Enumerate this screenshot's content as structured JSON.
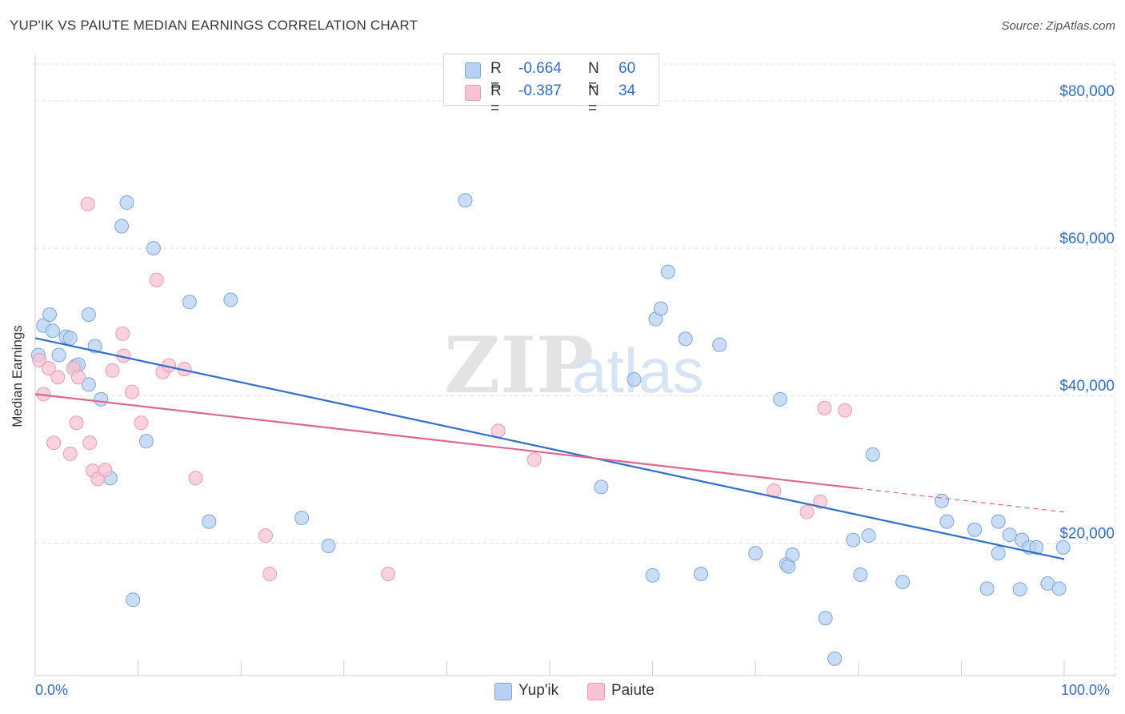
{
  "title": "YUP'IK VS PAIUTE MEDIAN EARNINGS CORRELATION CHART",
  "source": "Source: ZipAtlas.com",
  "watermark": {
    "zip": "ZIP",
    "atlas": "atlas"
  },
  "legend": {
    "rows": [
      {
        "r_label": "R =",
        "r_value": "-0.664",
        "n_label": "N =",
        "n_value": "60"
      },
      {
        "r_label": "R =",
        "r_value": "-0.387",
        "n_label": "N =",
        "n_value": "34"
      }
    ]
  },
  "bottom_legend": {
    "series1": "Yup'ik",
    "series2": "Paiute"
  },
  "x_ticks": {
    "left": "0.0%",
    "right": "100.0%"
  },
  "colors": {
    "blue_fill": "#b8d1f3",
    "blue_stroke": "#7aa6e0",
    "blue_line": "#2f6fd0",
    "pink_fill": "#f7c3d3",
    "pink_stroke": "#ec9bb5",
    "pink_line": "#e06690",
    "grid": "#dddddd",
    "tick_text": "#2f6fd0"
  },
  "chart_data": {
    "type": "scatter",
    "title": "YUP'IK VS PAIUTE MEDIAN EARNINGS CORRELATION CHART",
    "xlabel": "",
    "ylabel": "Median Earnings",
    "xlim": [
      0,
      100
    ],
    "ylim": [
      2000,
      85000
    ],
    "y_ticks": [
      {
        "value": 20000,
        "label": "$20,000"
      },
      {
        "value": 40000,
        "label": "$40,000"
      },
      {
        "value": 60000,
        "label": "$60,000"
      },
      {
        "value": 80000,
        "label": "$80,000"
      }
    ],
    "grid": true,
    "legend_position": "top-center",
    "series": [
      {
        "name": "Yup'ik",
        "color": "#b8d1f3",
        "trend": {
          "x0": 0,
          "y0": 47800,
          "x1": 100,
          "y1": 17800,
          "dashed_from": null
        },
        "points": [
          [
            0.3,
            45500
          ],
          [
            0.8,
            49500
          ],
          [
            1.4,
            51000
          ],
          [
            1.7,
            48800
          ],
          [
            2.3,
            45500
          ],
          [
            3.0,
            48000
          ],
          [
            3.4,
            47800
          ],
          [
            3.9,
            44000
          ],
          [
            4.2,
            44200
          ],
          [
            5.2,
            51000
          ],
          [
            5.2,
            41500
          ],
          [
            5.8,
            46700
          ],
          [
            6.4,
            39500
          ],
          [
            7.3,
            28800
          ],
          [
            8.4,
            63000
          ],
          [
            8.9,
            66200
          ],
          [
            9.5,
            12300
          ],
          [
            10.8,
            33800
          ],
          [
            11.5,
            60000
          ],
          [
            15.0,
            52700
          ],
          [
            16.9,
            22900
          ],
          [
            19.0,
            53000
          ],
          [
            25.9,
            23400
          ],
          [
            28.5,
            19600
          ],
          [
            41.8,
            66500
          ],
          [
            55.0,
            27600
          ],
          [
            58.2,
            42200
          ],
          [
            60.0,
            15600
          ],
          [
            60.3,
            50400
          ],
          [
            60.8,
            51800
          ],
          [
            61.5,
            56800
          ],
          [
            63.2,
            47700
          ],
          [
            64.7,
            15800
          ],
          [
            66.5,
            46900
          ],
          [
            70.0,
            18600
          ],
          [
            72.4,
            39500
          ],
          [
            73.0,
            17100
          ],
          [
            73.2,
            16800
          ],
          [
            73.6,
            18400
          ],
          [
            76.8,
            9800
          ],
          [
            77.7,
            4300
          ],
          [
            79.5,
            20400
          ],
          [
            80.2,
            15700
          ],
          [
            81.0,
            21000
          ],
          [
            81.4,
            32000
          ],
          [
            84.3,
            14700
          ],
          [
            88.1,
            25700
          ],
          [
            88.6,
            22900
          ],
          [
            91.3,
            21800
          ],
          [
            92.5,
            13800
          ],
          [
            93.6,
            18600
          ],
          [
            93.6,
            22900
          ],
          [
            94.7,
            21100
          ],
          [
            95.7,
            13700
          ],
          [
            95.9,
            20400
          ],
          [
            96.6,
            19400
          ],
          [
            97.3,
            19400
          ],
          [
            98.4,
            14500
          ],
          [
            99.5,
            13800
          ],
          [
            99.9,
            19400
          ]
        ]
      },
      {
        "name": "Paiute",
        "color": "#f7c3d3",
        "trend": {
          "x0": 0,
          "y0": 40200,
          "x1": 100,
          "y1": 24200,
          "dashed_from": 80
        },
        "points": [
          [
            0.4,
            44800
          ],
          [
            0.8,
            40200
          ],
          [
            1.3,
            43700
          ],
          [
            1.8,
            33600
          ],
          [
            2.2,
            42500
          ],
          [
            3.4,
            32100
          ],
          [
            3.7,
            43700
          ],
          [
            4.0,
            36300
          ],
          [
            4.2,
            42500
          ],
          [
            5.3,
            33600
          ],
          [
            5.1,
            66000
          ],
          [
            5.6,
            29800
          ],
          [
            6.1,
            28700
          ],
          [
            6.8,
            29900
          ],
          [
            7.5,
            43400
          ],
          [
            8.5,
            48400
          ],
          [
            8.6,
            45400
          ],
          [
            9.4,
            40500
          ],
          [
            10.3,
            36300
          ],
          [
            11.8,
            55700
          ],
          [
            12.4,
            43200
          ],
          [
            13.0,
            44100
          ],
          [
            14.5,
            43600
          ],
          [
            15.6,
            28800
          ],
          [
            22.4,
            21000
          ],
          [
            22.8,
            15800
          ],
          [
            34.3,
            15800
          ],
          [
            45.0,
            35200
          ],
          [
            48.5,
            31300
          ],
          [
            71.8,
            27100
          ],
          [
            75.0,
            24200
          ],
          [
            76.3,
            25600
          ],
          [
            76.7,
            38300
          ],
          [
            78.7,
            38000
          ]
        ]
      }
    ]
  }
}
